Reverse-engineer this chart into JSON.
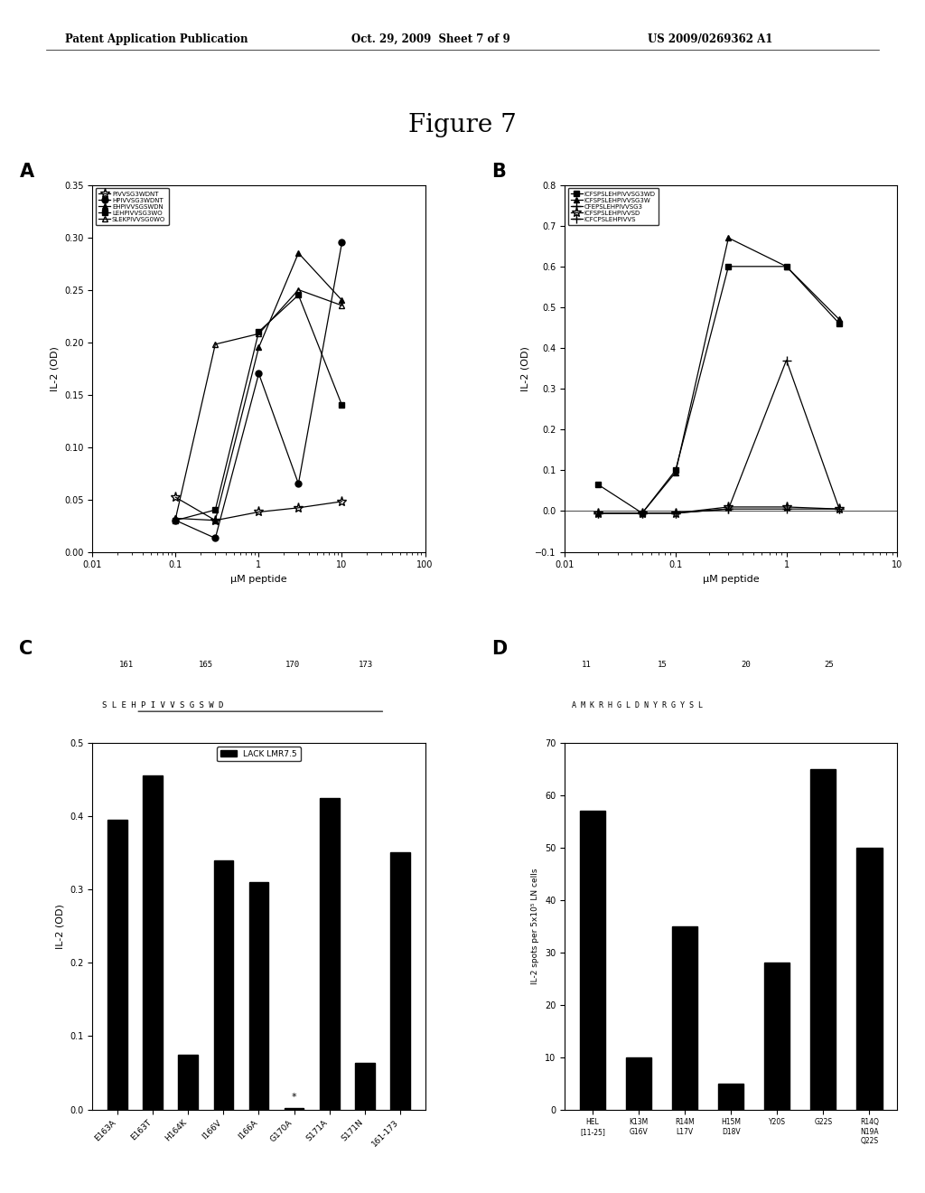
{
  "header_left": "Patent Application Publication",
  "header_center": "Oct. 29, 2009  Sheet 7 of 9",
  "header_right": "US 2009/0269362 A1",
  "figure_title": "Figure 7",
  "panelA": {
    "label": "A",
    "xlabel": "μM peptide",
    "ylabel": "IL-2 (OD)",
    "xmin": 0.01,
    "xmax": 100,
    "ymin": 0,
    "ymax": 0.35,
    "yticks": [
      0,
      0.05,
      0.1,
      0.15,
      0.2,
      0.25,
      0.3,
      0.35
    ],
    "series": [
      {
        "label": "PIVVSG3WDNT",
        "marker": "*",
        "x": [
          0.1,
          0.3,
          1,
          3,
          10
        ],
        "y": [
          0.052,
          0.03,
          0.038,
          0.042,
          0.048
        ]
      },
      {
        "label": "HPIVVSG3WDNT",
        "marker": "o",
        "x": [
          0.1,
          0.3,
          1,
          3,
          10
        ],
        "y": [
          0.03,
          0.013,
          0.17,
          0.065,
          0.295
        ]
      },
      {
        "label": "EHPIVVSGSWDN",
        "marker": "^",
        "x": [
          0.1,
          0.3,
          1,
          3,
          10
        ],
        "y": [
          0.032,
          0.03,
          0.195,
          0.285,
          0.24
        ]
      },
      {
        "label": "LEHPIVVSG3WO",
        "marker": "s",
        "x": [
          0.1,
          0.3,
          1,
          3,
          10
        ],
        "y": [
          0.03,
          0.04,
          0.21,
          0.245,
          0.14
        ]
      },
      {
        "label": "SLEKPIVVSG0WO",
        "marker": "^",
        "x": [
          0.1,
          0.3,
          1,
          3,
          10
        ],
        "y": [
          0.032,
          0.198,
          0.208,
          0.25,
          0.235
        ]
      }
    ]
  },
  "panelB": {
    "label": "B",
    "xlabel": "μM peptide",
    "ylabel": "IL-2 (OD)",
    "xmin": 0.01,
    "xmax": 10,
    "ymin": -0.1,
    "ymax": 0.8,
    "yticks": [
      -0.1,
      0,
      0.1,
      0.2,
      0.3,
      0.4,
      0.5,
      0.6,
      0.7,
      0.8
    ],
    "series": [
      {
        "label": "ICFSPSLEHPIVVSG3WD",
        "marker": "s",
        "x": [
          0.02,
          0.05,
          0.1,
          0.3,
          1,
          3
        ],
        "y": [
          0.065,
          -0.005,
          0.1,
          0.6,
          0.6,
          0.46
        ]
      },
      {
        "label": "ICFSPSLEHPIVVSG3W",
        "marker": "^",
        "x": [
          0.02,
          0.05,
          0.1,
          0.3,
          1,
          3
        ],
        "y": [
          -0.005,
          -0.005,
          0.095,
          0.67,
          0.6,
          0.47
        ]
      },
      {
        "label": "CFEPSLEHPIVVSG3",
        "marker": "+",
        "x": [
          0.02,
          0.05,
          0.1,
          0.3,
          1,
          3
        ],
        "y": [
          -0.005,
          -0.005,
          -0.005,
          0.005,
          0.005,
          0.005
        ]
      },
      {
        "label": "ICFSPSLEHPIVVSD",
        "marker": "*",
        "x": [
          0.02,
          0.05,
          0.1,
          0.3,
          1,
          3
        ],
        "y": [
          -0.005,
          -0.005,
          -0.005,
          0.01,
          0.01,
          0.005
        ]
      },
      {
        "label": "ICFCPSLEHPIVVS",
        "marker": "+",
        "x": [
          0.02,
          0.05,
          0.1,
          0.3,
          1,
          3
        ],
        "y": [
          -0.005,
          -0.005,
          -0.005,
          0.005,
          0.37,
          0.005
        ]
      }
    ]
  },
  "panelC": {
    "label": "C",
    "ylabel": "IL-2 (OD)",
    "num_line": "161              165              170         173",
    "aa_line": "S L E H P I V V S G S W D",
    "underline_start": 2,
    "underline_end": 12,
    "legend_label": "LACK LMR7.5",
    "bar_categories": [
      "E163A",
      "E163T",
      "H164K",
      "I166V",
      "I166A",
      "G170A",
      "S171A",
      "S171N",
      "161-173"
    ],
    "bar_values": [
      0.395,
      0.455,
      0.075,
      0.34,
      0.31,
      0.002,
      0.425,
      0.063,
      0.35
    ],
    "ymin": 0,
    "ymax": 0.5,
    "yticks": [
      0,
      0.1,
      0.2,
      0.3,
      0.4,
      0.5
    ]
  },
  "panelD": {
    "label": "D",
    "ylabel": "IL-2 spots per 5x10⁵ LN cells",
    "num_line": "11            15            20         25",
    "aa_line": "A M K R H G L D N Y R G Y S L",
    "bar_categories": [
      "HEL\n[11-25]",
      "K13M\nG16V",
      "R14M\nL17V",
      "H15M\nD18V",
      "Y20S",
      "G22S",
      "R14Q\nN19A\nQ22S"
    ],
    "bar_values": [
      57,
      10,
      35,
      5,
      28,
      65,
      50
    ],
    "ymin": 0,
    "ymax": 70,
    "yticks": [
      0,
      10,
      20,
      30,
      40,
      50,
      60,
      70
    ]
  },
  "bg_color": "#ffffff",
  "line_color": "#000000"
}
